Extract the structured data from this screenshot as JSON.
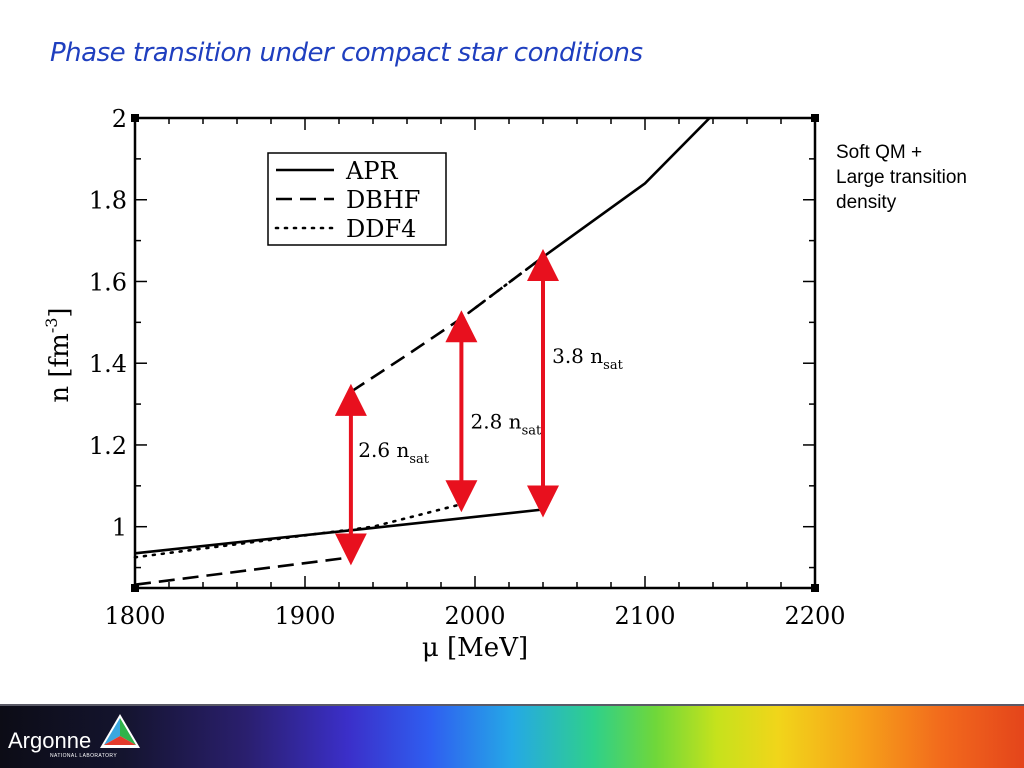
{
  "slide": {
    "title": "Phase transition under compact star conditions",
    "note_lines": [
      "Soft QM +",
      "Large transition",
      "density"
    ]
  },
  "logo": {
    "name": "Argonne",
    "subtitle": "NATIONAL LABORATORY"
  },
  "chart_data": {
    "type": "line",
    "title": "",
    "xlabel": "μ  [MeV]",
    "ylabel": "n  [fm",
    "ylabel_sup": "-3",
    "ylabel_close": "]",
    "xlim": [
      1800,
      2200
    ],
    "ylim": [
      0.85,
      2.0
    ],
    "x_ticks": [
      1800,
      1900,
      2000,
      2100,
      2200
    ],
    "y_ticks": [
      1,
      1.2,
      1.4,
      1.6,
      1.8,
      2
    ],
    "x_tick_labels": [
      "1800",
      "1900",
      "2000",
      "2100",
      "2200"
    ],
    "y_tick_labels": [
      "1",
      "1.2",
      "1.4",
      "1.6",
      "1.8",
      "2"
    ],
    "grid": false,
    "legend_position": "top-left",
    "series": [
      {
        "name": "APR",
        "style": "solid",
        "segments": [
          [
            [
              1800,
              0.935
            ],
            [
              1940,
              0.997
            ],
            [
              2040,
              1.042
            ]
          ],
          [
            [
              2040,
              1.66
            ],
            [
              2060,
              1.72
            ],
            [
              2100,
              1.84
            ],
            [
              2138,
              2.0
            ]
          ]
        ]
      },
      {
        "name": "DBHF",
        "style": "dashed",
        "segments": [
          [
            [
              1800,
              0.858
            ],
            [
              1927,
              0.925
            ]
          ],
          [
            [
              1927,
              1.33
            ],
            [
              1960,
              1.42
            ],
            [
              1992,
              1.51
            ],
            [
              2040,
              1.66
            ]
          ]
        ]
      },
      {
        "name": "DDF4",
        "style": "dotted",
        "segments": [
          [
            [
              1800,
              0.925
            ],
            [
              1940,
              1.0
            ],
            [
              1992,
              1.055
            ]
          ],
          [
            [
              1992,
              1.51
            ],
            [
              2040,
              1.66
            ]
          ]
        ]
      }
    ],
    "annotations": [
      {
        "x": 1927,
        "y_low": 0.925,
        "y_high": 1.33,
        "value": "2.6",
        "unit": "n",
        "sub": "sat",
        "label_x": 1929,
        "label_y": 1.17
      },
      {
        "x": 1992,
        "y_low": 1.055,
        "y_high": 1.51,
        "value": "2.8",
        "unit": "n",
        "sub": "sat",
        "label_x": 1995,
        "label_y": 1.24
      },
      {
        "x": 2040,
        "y_low": 1.042,
        "y_high": 1.66,
        "value": "3.8",
        "unit": "n",
        "sub": "sat",
        "label_x": 2043,
        "label_y": 1.4
      }
    ],
    "colors": {
      "arrow": "#e8101e",
      "line": "#000000"
    }
  }
}
